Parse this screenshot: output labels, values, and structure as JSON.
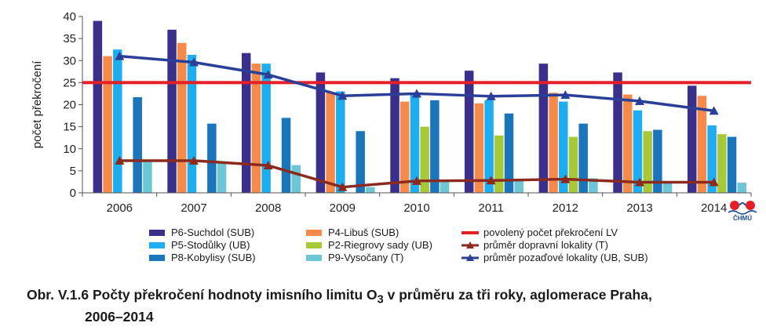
{
  "chart_data": {
    "type": "bar",
    "ylabel": "počet překročení",
    "ylim": [
      0,
      40
    ],
    "yticks": [
      0,
      5,
      10,
      15,
      20,
      25,
      30,
      35,
      40
    ],
    "categories": [
      "2006",
      "2007",
      "2008",
      "2009",
      "2010",
      "2011",
      "2012",
      "2013",
      "2014"
    ],
    "series": [
      {
        "name": "P6-Suchdol (SUB)",
        "color": "#3b2f8c",
        "values": [
          39,
          37,
          31.7,
          27.3,
          26,
          27.7,
          29.3,
          27.3,
          24.3
        ]
      },
      {
        "name": "P4-Libuš (SUB)",
        "color": "#f58a4b",
        "values": [
          31,
          34,
          29.3,
          22.7,
          20.7,
          20.3,
          22.7,
          22.3,
          22
        ]
      },
      {
        "name": "P5-Stodůlky (UB)",
        "color": "#1eaef0",
        "values": [
          32.5,
          31.3,
          29.3,
          23,
          22.7,
          21,
          20.7,
          18.7,
          15.3
        ]
      },
      {
        "name": "P2-Riegrovy sady (UB)",
        "color": "#a8c83a",
        "values": [
          null,
          null,
          null,
          null,
          15,
          13,
          12.7,
          14,
          13.3
        ]
      },
      {
        "name": "P8-Kobylisy (SUB)",
        "color": "#1b75bb",
        "values": [
          21.7,
          15.7,
          17,
          14,
          21,
          18,
          15.7,
          14.3,
          12.7
        ]
      },
      {
        "name": "P9-Vysočany (T)",
        "color": "#6cc6d6",
        "values": [
          7.3,
          7,
          6.3,
          1.3,
          2.7,
          3,
          3.3,
          2.3,
          2.3
        ]
      }
    ],
    "lines": [
      {
        "name": "povolený počet překročení LV",
        "color": "#e3202a",
        "values": [
          25,
          25,
          25,
          25,
          25,
          25,
          25,
          25,
          25
        ],
        "marker": "none"
      },
      {
        "name": "průměr dopravní lokality (T)",
        "color": "#8b2a1e",
        "values": [
          7.3,
          7.3,
          6.2,
          1.3,
          2.7,
          2.8,
          3.1,
          2.4,
          2.4
        ],
        "marker": "triangle"
      },
      {
        "name": "průměr pozaďové lokality (UB, SUB)",
        "color": "#2a3f97",
        "values": [
          31,
          29.6,
          26.8,
          22,
          22.5,
          21.9,
          22.2,
          20.8,
          18.6
        ],
        "marker": "triangle"
      }
    ],
    "legend": "bottom",
    "grid": false
  },
  "caption": {
    "prefix": "Obr. V.1.6  Počty překročení hodnoty imisního limitu O",
    "subscript": "3",
    "suffix": " v průměru za tři roky, aglomerace Praha,",
    "line2": "2006–2014"
  },
  "logo": {
    "text": "ČHMÚ",
    "color": "#e3202a"
  }
}
